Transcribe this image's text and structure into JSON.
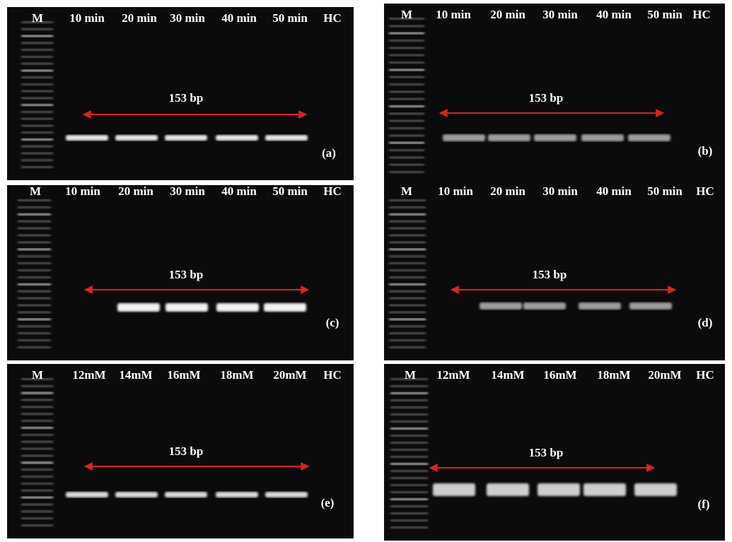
{
  "panels": [
    {
      "lanes": [
        "M",
        "10 min",
        "20 min",
        "30 min",
        "40 min",
        "50 min",
        "HC"
      ],
      "size": "153 bp",
      "letter": "(a)"
    },
    {
      "lanes": [
        "M",
        "10 min",
        "20 min",
        "30 min",
        "40 min",
        "50 min",
        "HC"
      ],
      "size": "153 bp",
      "letter": "(b)"
    },
    {
      "lanes": [
        "M",
        "10 min",
        "20 min",
        "30 min",
        "40 min",
        "50 min",
        "HC"
      ],
      "size": "153 bp",
      "letter": "(c)"
    },
    {
      "lanes": [
        "M",
        "10 min",
        "20 min",
        "30 min",
        "40 min",
        "50 min",
        "HC"
      ],
      "size": "153 bp",
      "letter": "(d)"
    },
    {
      "lanes": [
        "M",
        "12mM",
        "14mM",
        "16mM",
        "18mM",
        "20mM",
        "HC"
      ],
      "size": "153 bp",
      "letter": "(e)"
    },
    {
      "lanes": [
        "M",
        "12mM",
        "14mM",
        "16mM",
        "18mM",
        "20mM",
        "HC"
      ],
      "size": "153 bp",
      "letter": "(f)"
    }
  ]
}
